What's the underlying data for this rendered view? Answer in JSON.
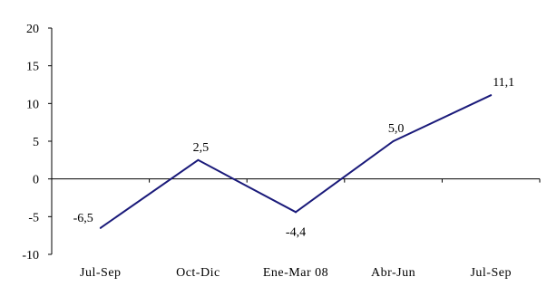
{
  "chart_data": {
    "type": "line",
    "title": "",
    "xlabel": "",
    "ylabel": "",
    "categories": [
      "Jul-Sep",
      "Oct-Dic",
      "Ene-Mar 08",
      "Abr-Jun",
      "Jul-Sep"
    ],
    "series": [
      {
        "values": [
          -6.5,
          2.5,
          -4.4,
          5.0,
          11.1
        ],
        "data_labels": [
          "-6,5",
          "2,5",
          "-4,4",
          "5,0",
          "11,1"
        ]
      }
    ],
    "ylim": [
      -10,
      20
    ],
    "yticks": [
      -10,
      -5,
      0,
      5,
      10,
      15,
      20
    ],
    "ytick_labels": [
      "-10",
      "-5",
      "0",
      "5",
      "10",
      "15",
      "20"
    ],
    "grid": false,
    "legend": "none",
    "colors": {
      "line": "#1a1a7a",
      "axis": "#000000",
      "background": "#ffffff"
    }
  }
}
